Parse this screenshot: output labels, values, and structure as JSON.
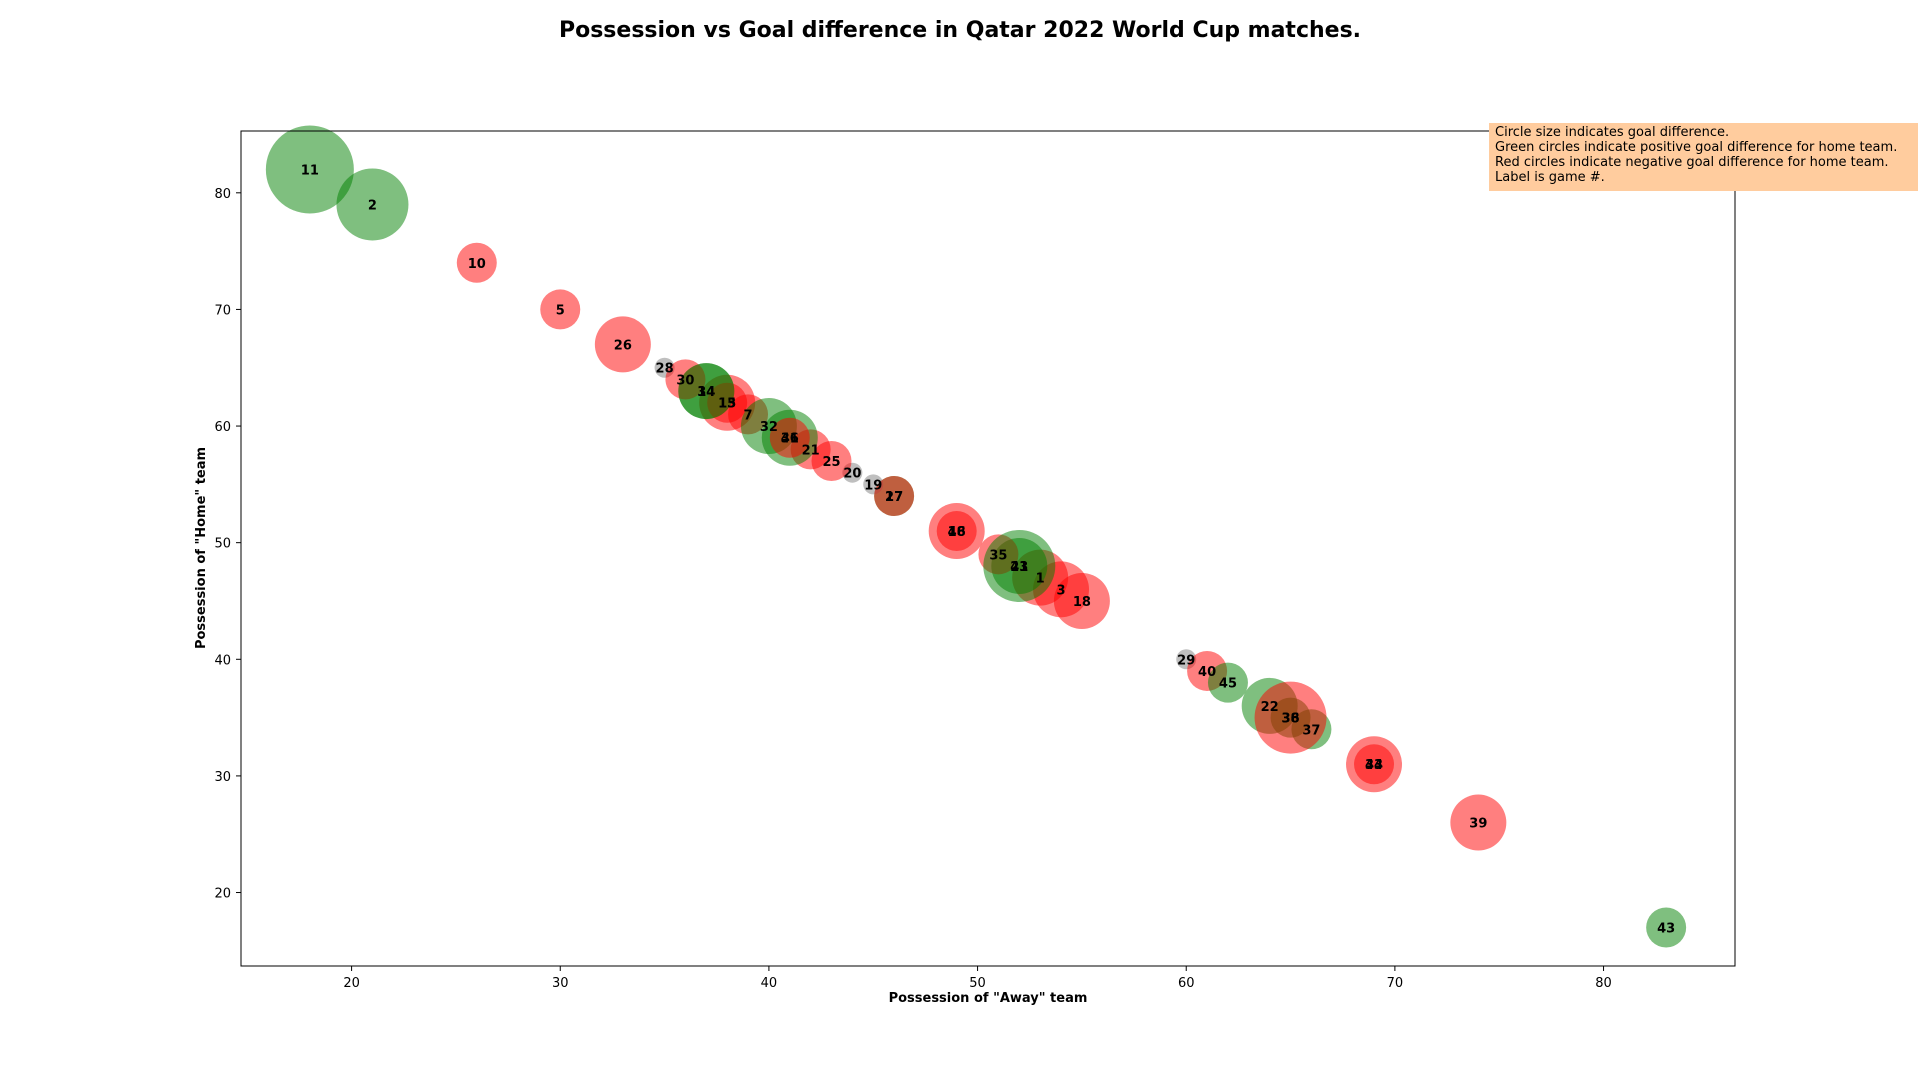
{
  "chart_data": {
    "type": "scatter",
    "title": "Possession vs Goal difference in Qatar 2022 World Cup matches.",
    "xlabel": "Possession of \"Away\" team",
    "ylabel": "Possession of \"Home\" team",
    "xlim": [
      14.7,
      86.3
    ],
    "ylim": [
      13.7,
      85.3
    ],
    "xticks": [
      20,
      30,
      40,
      50,
      60,
      70,
      80
    ],
    "yticks": [
      20,
      30,
      40,
      50,
      60,
      70,
      80
    ],
    "grid": false,
    "colors": {
      "positive": "#008000",
      "negative": "#ff0000",
      "zero": "#808080"
    },
    "annotation": [
      "Circle size indicates goal difference.",
      "Green circles indicate positive goal difference for home team.",
      "Red circles indicate negative goal difference for home team.",
      "Label is game #."
    ],
    "points": [
      {
        "game": "1",
        "x": 53,
        "y": 47,
        "gd": -2
      },
      {
        "game": "2",
        "x": 21,
        "y": 79,
        "gd": 3
      },
      {
        "game": "3",
        "x": 54,
        "y": 46,
        "gd": -2
      },
      {
        "game": "5",
        "x": 30,
        "y": 70,
        "gd": -1
      },
      {
        "game": "7",
        "x": 39,
        "y": 61,
        "gd": -1
      },
      {
        "game": "10",
        "x": 26,
        "y": 74,
        "gd": -1
      },
      {
        "game": "11",
        "x": 18,
        "y": 82,
        "gd": 4
      },
      {
        "game": "13",
        "x": 38,
        "y": 62,
        "gd": -2
      },
      {
        "game": "14",
        "x": 37,
        "y": 63,
        "gd": 2
      },
      {
        "game": "15",
        "x": 38,
        "y": 62,
        "gd": -1
      },
      {
        "game": "16",
        "x": 49,
        "y": 51,
        "gd": -2
      },
      {
        "game": "17",
        "x": 46,
        "y": 54,
        "gd": 1
      },
      {
        "game": "18",
        "x": 55,
        "y": 45,
        "gd": -2
      },
      {
        "game": "19",
        "x": 45,
        "y": 55,
        "gd": 0
      },
      {
        "game": "20",
        "x": 44,
        "y": 56,
        "gd": 0
      },
      {
        "game": "21",
        "x": 42,
        "y": 58,
        "gd": -1
      },
      {
        "game": "22",
        "x": 64,
        "y": 36,
        "gd": 2
      },
      {
        "game": "23",
        "x": 52,
        "y": 48,
        "gd": 2
      },
      {
        "game": "25",
        "x": 43,
        "y": 57,
        "gd": -1
      },
      {
        "game": "26",
        "x": 33,
        "y": 67,
        "gd": -2
      },
      {
        "game": "27",
        "x": 46,
        "y": 54,
        "gd": -1
      },
      {
        "game": "28",
        "x": 35,
        "y": 65,
        "gd": 0
      },
      {
        "game": "29",
        "x": 60,
        "y": 40,
        "gd": 0
      },
      {
        "game": "30",
        "x": 36,
        "y": 64,
        "gd": -1
      },
      {
        "game": "31",
        "x": 41,
        "y": 59,
        "gd": 2
      },
      {
        "game": "32",
        "x": 40,
        "y": 60,
        "gd": 2
      },
      {
        "game": "33",
        "x": 69,
        "y": 31,
        "gd": -1
      },
      {
        "game": "34",
        "x": 37,
        "y": 63,
        "gd": 2
      },
      {
        "game": "35",
        "x": 51,
        "y": 49,
        "gd": -1
      },
      {
        "game": "36",
        "x": 65,
        "y": 35,
        "gd": 1
      },
      {
        "game": "37",
        "x": 66,
        "y": 34,
        "gd": 1
      },
      {
        "game": "38",
        "x": 65,
        "y": 35,
        "gd": -3
      },
      {
        "game": "39",
        "x": 74,
        "y": 26,
        "gd": -2
      },
      {
        "game": "40",
        "x": 61,
        "y": 39,
        "gd": -1
      },
      {
        "game": "41",
        "x": 52,
        "y": 48,
        "gd": 3
      },
      {
        "game": "43",
        "x": 83,
        "y": 17,
        "gd": 1
      },
      {
        "game": "44",
        "x": 69,
        "y": 31,
        "gd": -2
      },
      {
        "game": "45",
        "x": 62,
        "y": 38,
        "gd": 1
      },
      {
        "game": "46",
        "x": 41,
        "y": 59,
        "gd": -1
      },
      {
        "game": "48",
        "x": 49,
        "y": 51,
        "gd": -1
      }
    ]
  }
}
